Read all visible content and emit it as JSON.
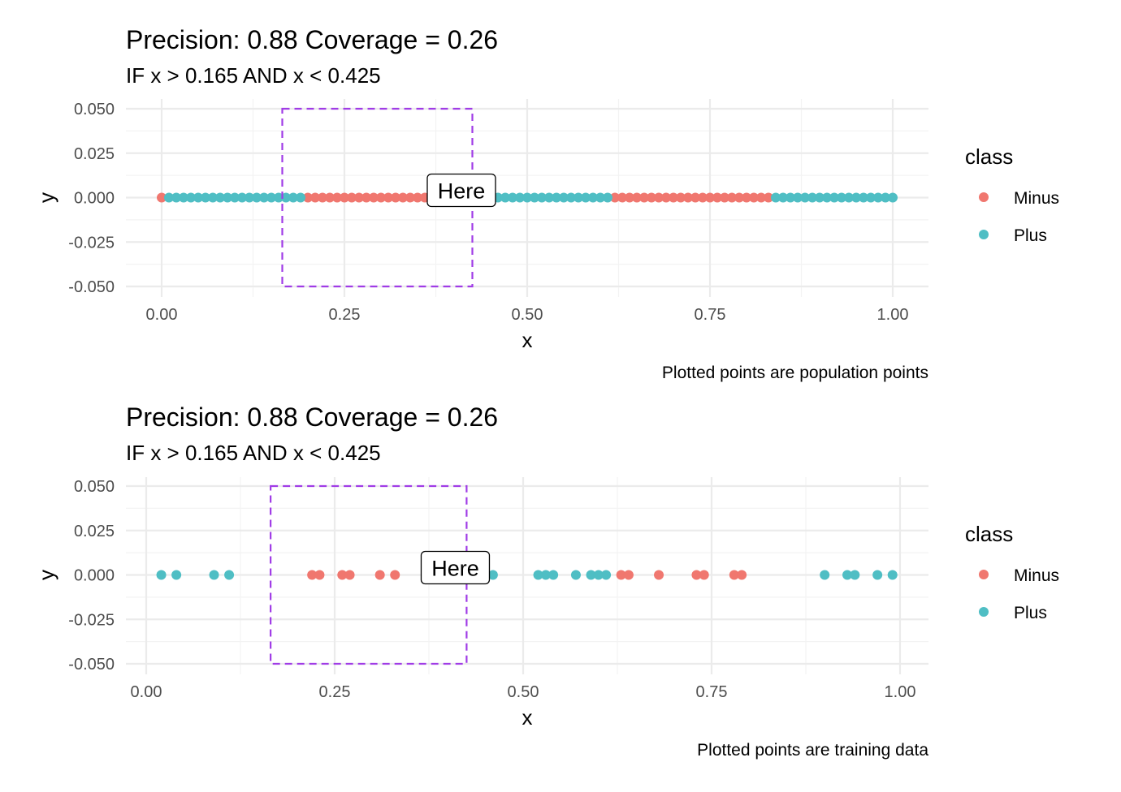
{
  "legend": {
    "title": "class",
    "entries": [
      {
        "label": "Minus",
        "color": "#f0776f"
      },
      {
        "label": "Plus",
        "color": "#4fbec4"
      }
    ]
  },
  "chart_data": [
    {
      "type": "scatter",
      "title": "Precision: 0.88 Coverage = 0.26",
      "subtitle": "IF x > 0.165 AND x < 0.425",
      "caption": "Plotted points are population points",
      "xlabel": "x",
      "ylabel": "y",
      "xlim": [
        0,
        1
      ],
      "ylim": [
        -0.05,
        0.05
      ],
      "xticks": [
        "0.00",
        "0.25",
        "0.50",
        "0.75",
        "1.00"
      ],
      "yticks": [
        "0.050",
        "0.025",
        "0.000",
        "-0.025",
        "-0.050"
      ],
      "grid": true,
      "legend_position": "right",
      "rule_box": {
        "xmin": 0.165,
        "xmax": 0.425,
        "ymin": -0.05,
        "ymax": 0.05
      },
      "annotation": {
        "text": "Here",
        "x": 0.41,
        "y": 0.0
      },
      "series": [
        {
          "name": "Minus",
          "color": "#f0776f",
          "x": [
            0.0,
            0.2,
            0.21,
            0.22,
            0.23,
            0.24,
            0.25,
            0.26,
            0.27,
            0.28,
            0.29,
            0.3,
            0.31,
            0.32,
            0.33,
            0.34,
            0.35,
            0.36,
            0.37,
            0.38,
            0.39,
            0.4,
            0.41,
            0.42,
            0.43,
            0.44,
            0.45,
            0.62,
            0.63,
            0.64,
            0.65,
            0.66,
            0.67,
            0.68,
            0.69,
            0.7,
            0.71,
            0.72,
            0.73,
            0.74,
            0.75,
            0.76,
            0.77,
            0.78,
            0.79,
            0.8,
            0.81,
            0.82,
            0.83
          ],
          "y": [
            0,
            0,
            0,
            0,
            0,
            0,
            0,
            0,
            0,
            0,
            0,
            0,
            0,
            0,
            0,
            0,
            0,
            0,
            0,
            0,
            0,
            0,
            0,
            0,
            0,
            0,
            0,
            0,
            0,
            0,
            0,
            0,
            0,
            0,
            0,
            0,
            0,
            0,
            0,
            0,
            0,
            0,
            0,
            0,
            0,
            0,
            0,
            0,
            0
          ]
        },
        {
          "name": "Plus",
          "color": "#4fbec4",
          "x": [
            0.01,
            0.02,
            0.03,
            0.04,
            0.05,
            0.06,
            0.07,
            0.08,
            0.09,
            0.1,
            0.11,
            0.12,
            0.13,
            0.14,
            0.15,
            0.16,
            0.17,
            0.18,
            0.19,
            0.46,
            0.47,
            0.48,
            0.49,
            0.5,
            0.51,
            0.52,
            0.53,
            0.54,
            0.55,
            0.56,
            0.57,
            0.58,
            0.59,
            0.6,
            0.61,
            0.84,
            0.85,
            0.86,
            0.87,
            0.88,
            0.89,
            0.9,
            0.91,
            0.92,
            0.93,
            0.94,
            0.95,
            0.96,
            0.97,
            0.98,
            0.99,
            1.0
          ],
          "y": [
            0,
            0,
            0,
            0,
            0,
            0,
            0,
            0,
            0,
            0,
            0,
            0,
            0,
            0,
            0,
            0,
            0,
            0,
            0,
            0,
            0,
            0,
            0,
            0,
            0,
            0,
            0,
            0,
            0,
            0,
            0,
            0,
            0,
            0,
            0,
            0,
            0,
            0,
            0,
            0,
            0,
            0,
            0,
            0,
            0,
            0,
            0,
            0,
            0,
            0,
            0,
            0
          ]
        }
      ]
    },
    {
      "type": "scatter",
      "title": "Precision: 0.88 Coverage = 0.26",
      "subtitle": "IF x > 0.165 AND x < 0.425",
      "caption": "Plotted points are training data",
      "xlabel": "x",
      "ylabel": "y",
      "xlim": [
        0,
        1
      ],
      "ylim": [
        -0.05,
        0.05
      ],
      "xticks": [
        "0.00",
        "0.25",
        "0.50",
        "0.75",
        "1.00"
      ],
      "yticks": [
        "0.050",
        "0.025",
        "0.000",
        "-0.025",
        "-0.050"
      ],
      "grid": true,
      "legend_position": "right",
      "rule_box": {
        "xmin": 0.165,
        "xmax": 0.425,
        "ymin": -0.05,
        "ymax": 0.05
      },
      "annotation": {
        "text": "Here",
        "x": 0.41,
        "y": 0.0
      },
      "series": [
        {
          "name": "Minus",
          "color": "#f0776f",
          "x": [
            0.22,
            0.23,
            0.26,
            0.27,
            0.31,
            0.33,
            0.63,
            0.64,
            0.68,
            0.73,
            0.74,
            0.78,
            0.79
          ],
          "y": [
            0,
            0,
            0,
            0,
            0,
            0,
            0,
            0,
            0,
            0,
            0,
            0,
            0
          ]
        },
        {
          "name": "Plus",
          "color": "#4fbec4",
          "x": [
            0.02,
            0.04,
            0.09,
            0.11,
            0.46,
            0.52,
            0.53,
            0.54,
            0.57,
            0.59,
            0.6,
            0.61,
            0.9,
            0.93,
            0.94,
            0.97,
            0.99
          ],
          "y": [
            0,
            0,
            0,
            0,
            0,
            0,
            0,
            0,
            0,
            0,
            0,
            0,
            0,
            0,
            0,
            0,
            0
          ]
        }
      ]
    }
  ]
}
